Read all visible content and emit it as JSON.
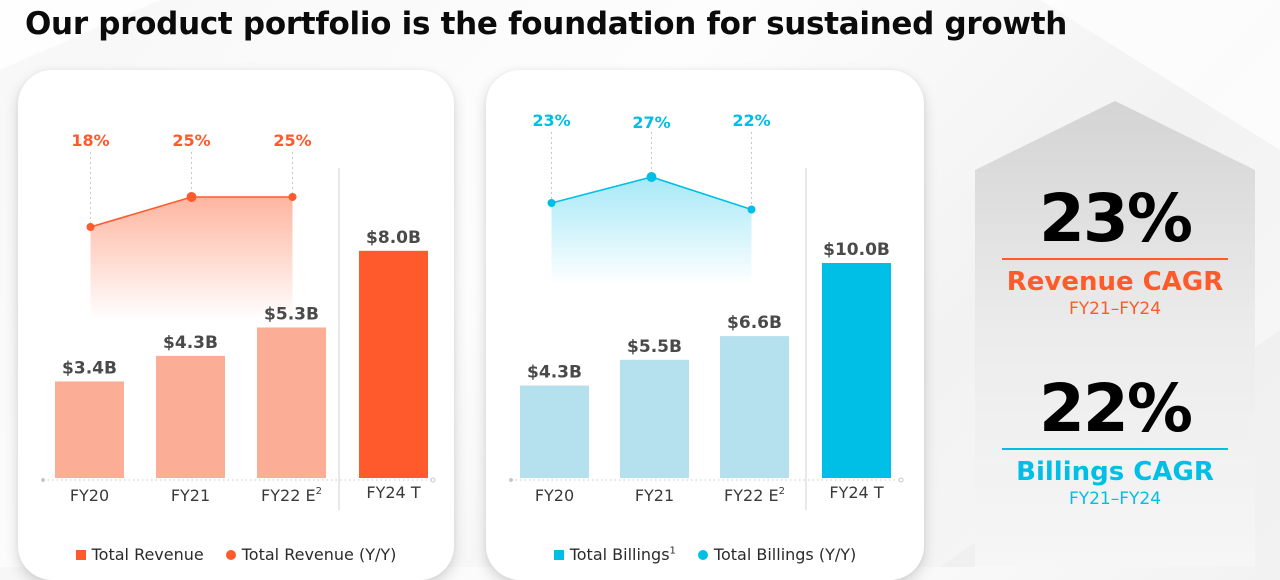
{
  "title": "Our product portfolio is the foundation for sustained growth",
  "colors": {
    "revenue_accent": "#FF5A2C",
    "revenue_light": "#FBAD95",
    "billings_accent": "#00BFE6",
    "billings_light": "#B5E1EF",
    "value_label": "#4a4a4a",
    "axis_label": "#3a3a3a"
  },
  "chart_data": [
    {
      "type": "bar",
      "title": "Total Revenue",
      "categories": [
        "FY20",
        "FY21",
        "FY22 E",
        "FY24 T"
      ],
      "category_superscripts": [
        "",
        "",
        "2",
        ""
      ],
      "series": [
        {
          "name": "Total Revenue",
          "unit": "$B",
          "values": [
            3.4,
            4.3,
            5.3,
            8.0
          ],
          "labels": [
            "$3.4B",
            "$4.3B",
            "$5.3B",
            "$8.0B"
          ],
          "target_index": 3
        },
        {
          "name": "Total Revenue (Y/Y)",
          "type": "line",
          "unit": "%",
          "values": [
            18,
            25,
            25
          ],
          "labels": [
            "18%",
            "25%",
            "25%"
          ]
        }
      ],
      "legend": [
        {
          "label": "Total Revenue",
          "sup": "",
          "marker": "square"
        },
        {
          "label": "Total Revenue (Y/Y)",
          "sup": "",
          "marker": "circle"
        }
      ],
      "legend_position": "bottom",
      "ylim": [
        0,
        10
      ],
      "grid": false
    },
    {
      "type": "bar",
      "title": "Total Billings",
      "categories": [
        "FY20",
        "FY21",
        "FY22 E",
        "FY24 T"
      ],
      "category_superscripts": [
        "",
        "",
        "2",
        ""
      ],
      "series": [
        {
          "name": "Total Billings",
          "unit": "$B",
          "values": [
            4.3,
            5.5,
            6.6,
            10.0
          ],
          "labels": [
            "$4.3B",
            "$5.5B",
            "$6.6B",
            "$10.0B"
          ],
          "target_index": 3
        },
        {
          "name": "Total Billings (Y/Y)",
          "type": "line",
          "unit": "%",
          "values": [
            23,
            27,
            22
          ],
          "labels": [
            "23%",
            "27%",
            "22%"
          ]
        }
      ],
      "legend": [
        {
          "label": "Total Billings",
          "sup": "1",
          "marker": "square"
        },
        {
          "label": "Total Billings (Y/Y)",
          "sup": "",
          "marker": "circle"
        }
      ],
      "legend_position": "bottom",
      "ylim": [
        0,
        12.5
      ],
      "grid": false
    }
  ],
  "stats": [
    {
      "value": "23%",
      "label": "Revenue CAGR",
      "range": "FY21–FY24",
      "color": "#FF5A2C"
    },
    {
      "value": "22%",
      "label": "Billings CAGR",
      "range": "FY21–FY24",
      "color": "#00BFE6"
    }
  ]
}
